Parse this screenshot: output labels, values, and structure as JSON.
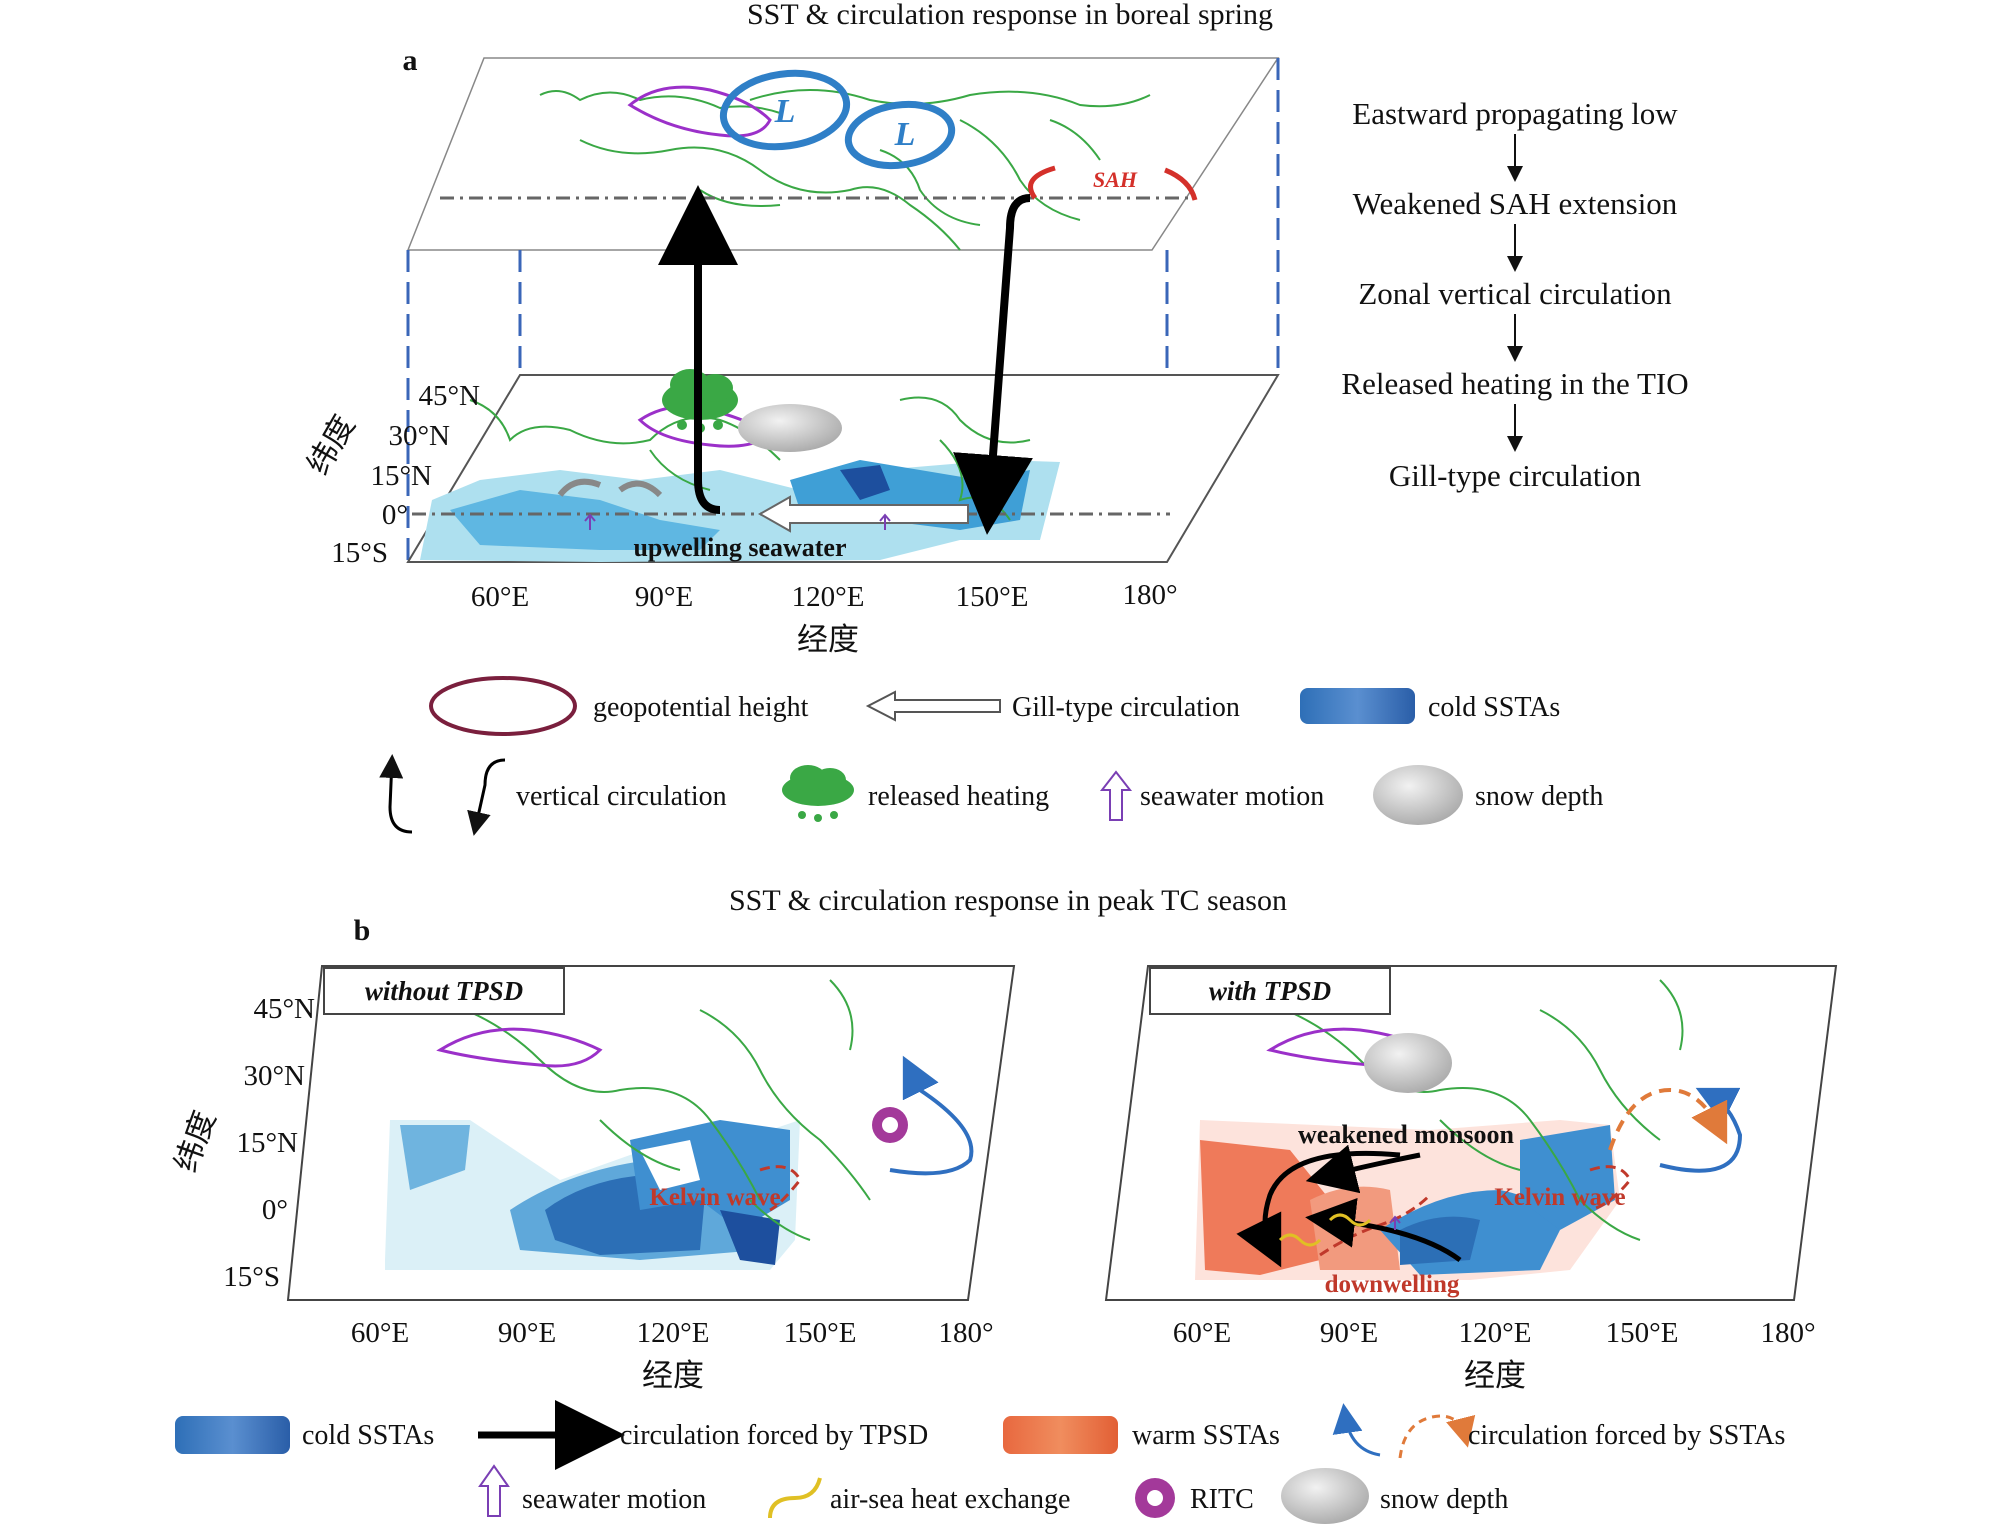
{
  "panel_a": {
    "letter": "a",
    "title": "SST & circulation response in boreal spring",
    "lat_ticks": [
      "45°N",
      "30°N",
      "15°N",
      "0°",
      "15°S"
    ],
    "lon_ticks": [
      "60°E",
      "90°E",
      "120°E",
      "150°E",
      "180°"
    ],
    "lat_axis_label": "纬度",
    "lon_axis_label": "经度",
    "low_labels": [
      "L",
      "L"
    ],
    "sah_label": "SAH",
    "upwelling_label": "upwelling seawater",
    "flow_chain": [
      "Eastward propagating low",
      "Weakened SAH extension",
      "Zonal vertical circulation",
      "Released heating in the TIO",
      "Gill-type circulation"
    ],
    "legend": {
      "geopotential": "geopotential height",
      "gill": "Gill-type circulation",
      "cold": "cold SSTAs",
      "vertical": "vertical circulation",
      "heating": "released heating",
      "seawater": "seawater motion",
      "snow": "snow depth"
    }
  },
  "panel_b": {
    "letter": "b",
    "title": "SST & circulation response in peak TC season",
    "lat_ticks": [
      "45°N",
      "30°N",
      "15°N",
      "0°",
      "15°S"
    ],
    "lon_ticks": [
      "60°E",
      "90°E",
      "120°E",
      "150°E",
      "180°"
    ],
    "lat_axis_label": "纬度",
    "lon_axis_label": "经度",
    "left_tag": "without TPSD",
    "right_tag": "with TPSD",
    "kelvin_left": "Kelvin wave",
    "kelvin_right": "Kelvin wave",
    "monsoon": "weakened monsoon",
    "downwelling": "downwelling",
    "legend": {
      "cold": "cold SSTAs",
      "tpsd": "circulation forced by TPSD",
      "warm": "warm SSTAs",
      "ssta": "circulation forced by SSTAs",
      "seawater": "seawater motion",
      "airsea": "air-sea heat exchange",
      "ritc": "RITC",
      "snow": "snow depth"
    }
  },
  "colors": {
    "coast": "#3aa845",
    "plateau": "#9b30c9",
    "cold_light": "#aee0ef",
    "cold_mid": "#3f9fd6",
    "cold_dark": "#1d4f9e",
    "warm": "#ef7a5a",
    "warm_light": "#f7c6b8",
    "low_circle": "#2f7fc7",
    "sah": "#d4302a",
    "guide": "#3a66b8"
  }
}
